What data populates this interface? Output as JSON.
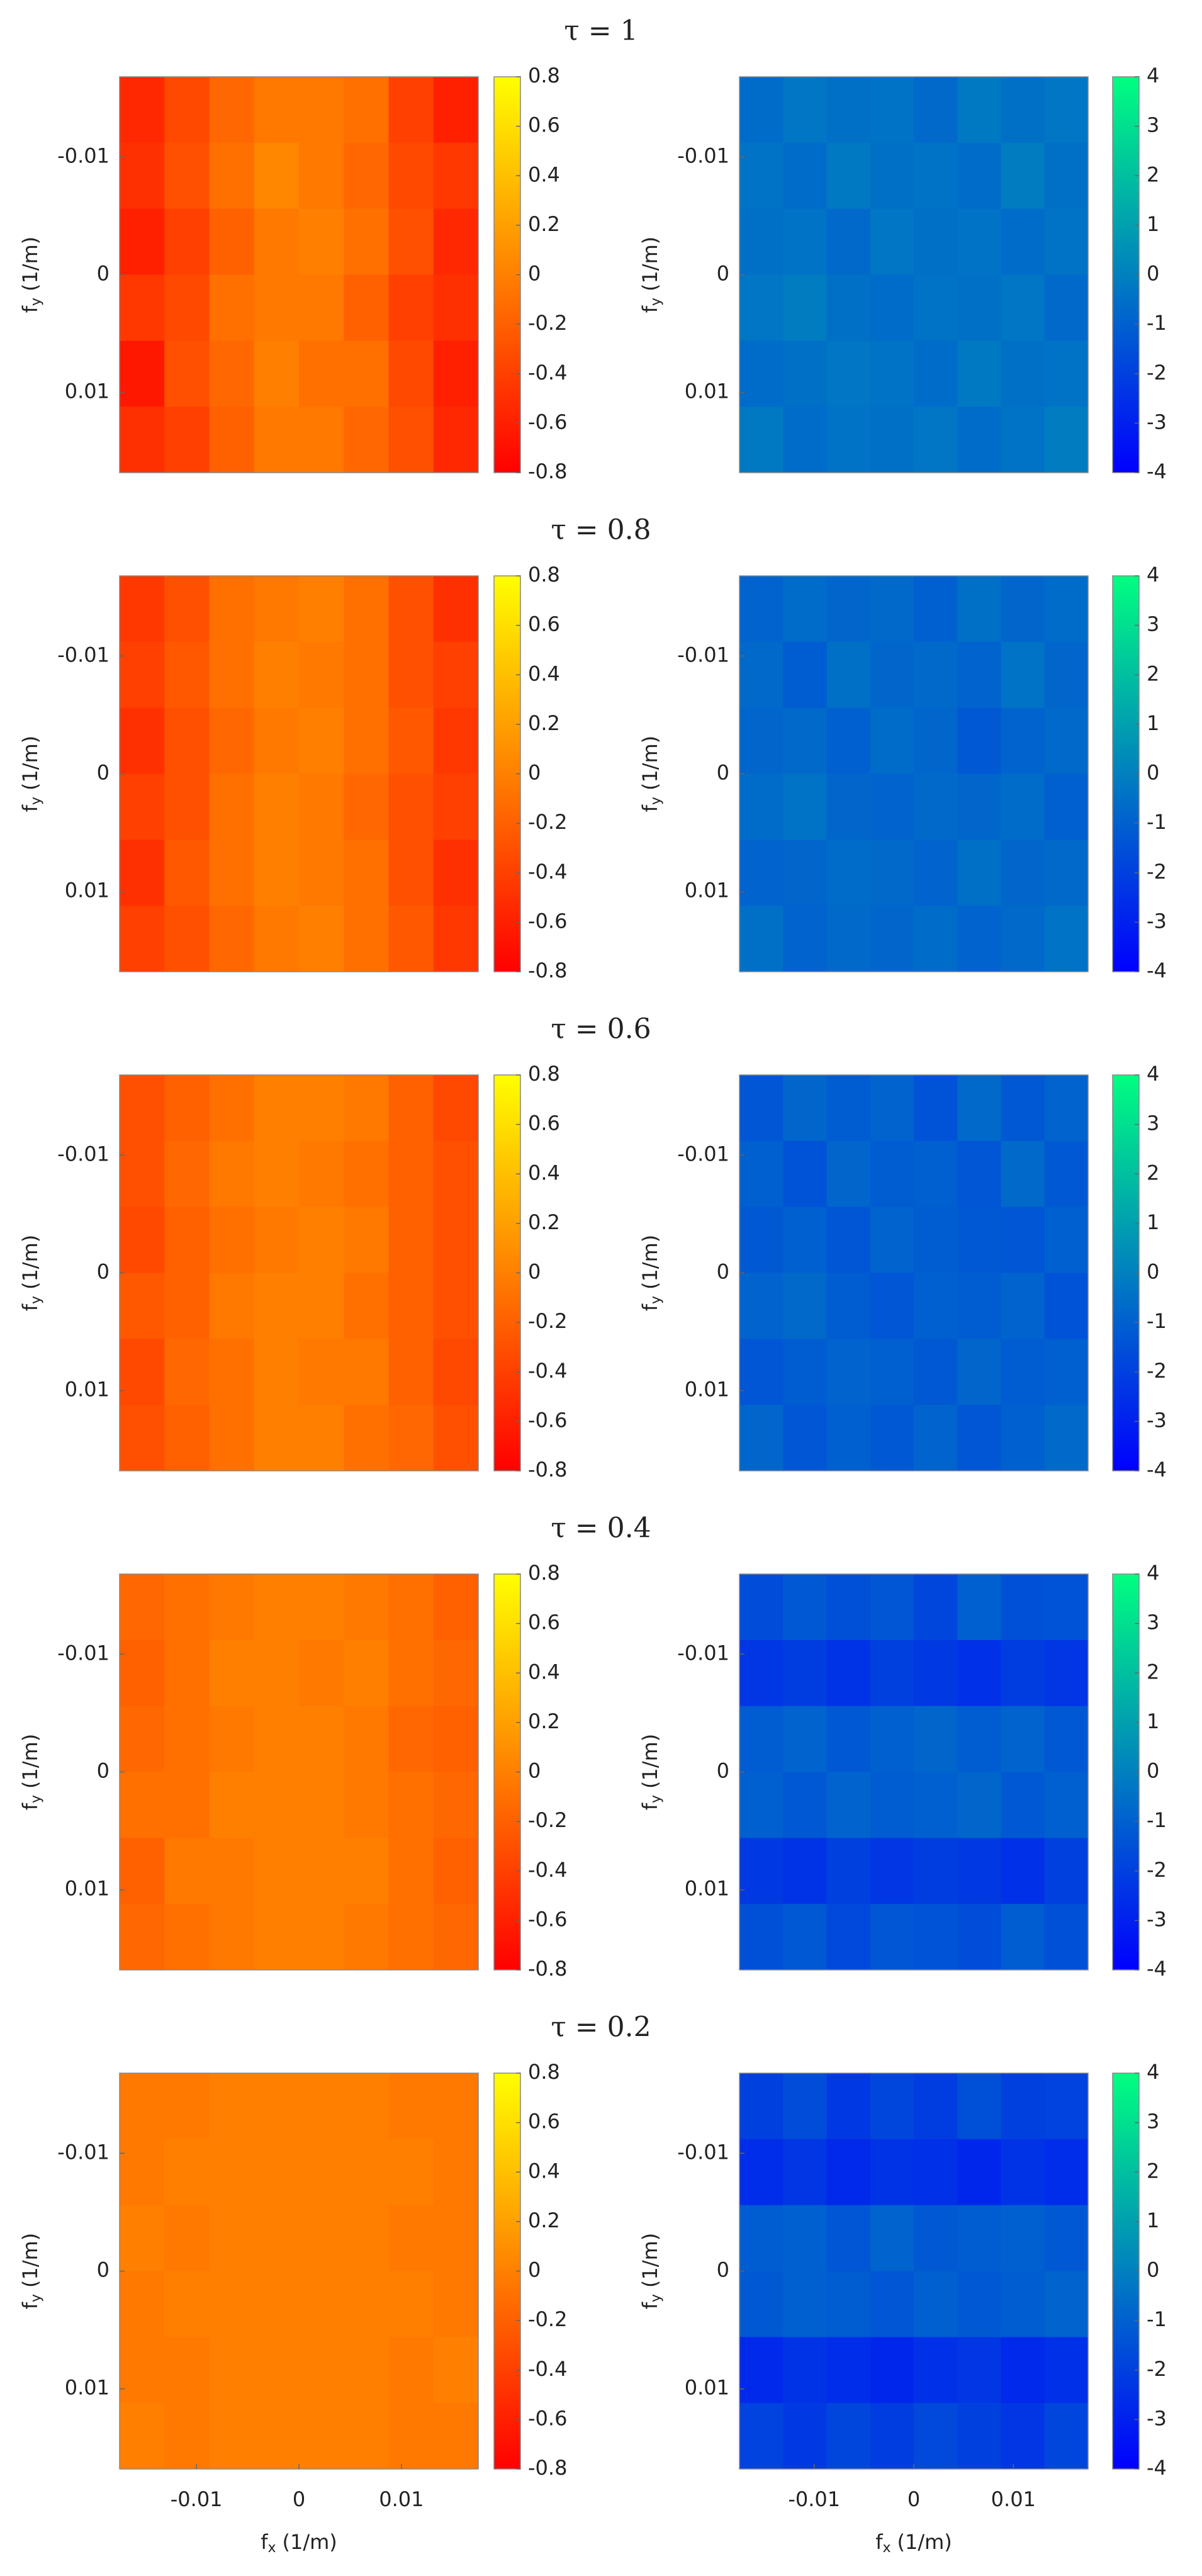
{
  "chart_data": [
    {
      "type": "heatmap",
      "title": "τ = 1",
      "colormap": "autumn",
      "zlim": [
        -0.8,
        0.8
      ],
      "zticks": [
        -0.8,
        -0.6,
        -0.4,
        -0.2,
        0,
        0.2,
        0.4,
        0.6,
        0.8
      ],
      "xlim": [
        -0.0175,
        0.0175
      ],
      "ylim": [
        -0.0168,
        0.0168
      ],
      "y_reversed": true,
      "yticks": [
        -0.01,
        0,
        0.01
      ],
      "y_label": {
        "main": "f",
        "sub": "y",
        "unit": "(1/m)"
      },
      "values": [
        [
          -0.55,
          -0.35,
          -0.15,
          -0.05,
          -0.05,
          -0.1,
          -0.4,
          -0.6
        ],
        [
          -0.5,
          -0.3,
          -0.1,
          0.05,
          -0.05,
          -0.15,
          -0.35,
          -0.45
        ],
        [
          -0.6,
          -0.4,
          -0.2,
          -0.05,
          0,
          -0.1,
          -0.3,
          -0.55
        ],
        [
          -0.45,
          -0.35,
          -0.1,
          -0.05,
          -0.05,
          -0.2,
          -0.4,
          -0.5
        ],
        [
          -0.65,
          -0.3,
          -0.15,
          0,
          -0.1,
          -0.1,
          -0.35,
          -0.6
        ],
        [
          -0.5,
          -0.4,
          -0.2,
          -0.05,
          -0.05,
          -0.15,
          -0.3,
          -0.55
        ]
      ]
    },
    {
      "type": "heatmap",
      "colormap": "winter",
      "zlim": [
        -4,
        4
      ],
      "zticks": [
        -4,
        -3,
        -2,
        -1,
        0,
        1,
        2,
        3,
        4
      ],
      "xlim": [
        -0.0175,
        0.0175
      ],
      "ylim": [
        -0.0168,
        0.0168
      ],
      "y_reversed": true,
      "yticks": [
        -0.01,
        0,
        0.01
      ],
      "y_label": {
        "main": "f",
        "sub": "y",
        "unit": "(1/m)"
      },
      "values": [
        [
          -0.6,
          -0.3,
          -0.5,
          -0.4,
          -0.7,
          -0.2,
          -0.5,
          -0.3
        ],
        [
          -0.4,
          -0.6,
          -0.2,
          -0.5,
          -0.4,
          -0.6,
          -0.1,
          -0.5
        ],
        [
          -0.5,
          -0.4,
          -0.7,
          -0.3,
          -0.5,
          -0.4,
          -0.6,
          -0.4
        ],
        [
          -0.3,
          -0.1,
          -0.5,
          -0.6,
          -0.4,
          -0.5,
          -0.3,
          -0.7
        ],
        [
          -0.6,
          -0.5,
          -0.3,
          -0.4,
          -0.6,
          -0.2,
          -0.5,
          -0.4
        ],
        [
          -0.2,
          -0.6,
          -0.4,
          -0.5,
          -0.3,
          -0.6,
          -0.4,
          -0.1
        ]
      ]
    },
    {
      "type": "heatmap",
      "title": "τ = 0.8",
      "colormap": "autumn",
      "zlim": [
        -0.8,
        0.8
      ],
      "zticks": [
        -0.8,
        -0.6,
        -0.4,
        -0.2,
        0,
        0.2,
        0.4,
        0.6,
        0.8
      ],
      "xlim": [
        -0.0175,
        0.0175
      ],
      "ylim": [
        -0.0168,
        0.0168
      ],
      "y_reversed": true,
      "yticks": [
        -0.01,
        0,
        0.01
      ],
      "y_label": {
        "main": "f",
        "sub": "y",
        "unit": "(1/m)"
      },
      "values": [
        [
          -0.45,
          -0.3,
          -0.1,
          -0.05,
          0,
          -0.1,
          -0.3,
          -0.5
        ],
        [
          -0.4,
          -0.25,
          -0.1,
          0,
          -0.05,
          -0.1,
          -0.3,
          -0.4
        ],
        [
          -0.5,
          -0.3,
          -0.15,
          -0.05,
          0,
          -0.1,
          -0.25,
          -0.45
        ],
        [
          -0.4,
          -0.3,
          -0.1,
          0,
          -0.05,
          -0.15,
          -0.3,
          -0.4
        ],
        [
          -0.5,
          -0.25,
          -0.1,
          0,
          -0.05,
          -0.1,
          -0.3,
          -0.5
        ],
        [
          -0.4,
          -0.3,
          -0.15,
          -0.05,
          0,
          -0.1,
          -0.25,
          -0.45
        ]
      ]
    },
    {
      "type": "heatmap",
      "colormap": "winter",
      "zlim": [
        -4,
        4
      ],
      "zticks": [
        -4,
        -3,
        -2,
        -1,
        0,
        1,
        2,
        3,
        4
      ],
      "xlim": [
        -0.0175,
        0.0175
      ],
      "ylim": [
        -0.0168,
        0.0168
      ],
      "y_reversed": true,
      "yticks": [
        -0.01,
        0,
        0.01
      ],
      "y_label": {
        "main": "f",
        "sub": "y",
        "unit": "(1/m)"
      },
      "values": [
        [
          -0.9,
          -0.6,
          -0.8,
          -0.7,
          -1,
          -0.5,
          -0.8,
          -0.6
        ],
        [
          -0.7,
          -1.1,
          -0.5,
          -0.8,
          -0.7,
          -0.9,
          -0.4,
          -0.8
        ],
        [
          -0.8,
          -0.7,
          -1,
          -0.6,
          -0.8,
          -1.2,
          -0.9,
          -0.7
        ],
        [
          -0.6,
          -0.4,
          -0.8,
          -0.9,
          -0.7,
          -0.8,
          -0.6,
          -1
        ],
        [
          -0.9,
          -0.8,
          -0.6,
          -0.7,
          -0.9,
          -0.5,
          -0.8,
          -0.7
        ],
        [
          -0.5,
          -0.9,
          -0.7,
          -0.8,
          -0.6,
          -0.9,
          -0.7,
          -0.4
        ]
      ]
    },
    {
      "type": "heatmap",
      "title": "τ = 0.6",
      "colormap": "autumn",
      "zlim": [
        -0.8,
        0.8
      ],
      "zticks": [
        -0.8,
        -0.6,
        -0.4,
        -0.2,
        0,
        0.2,
        0.4,
        0.6,
        0.8
      ],
      "xlim": [
        -0.0175,
        0.0175
      ],
      "ylim": [
        -0.0168,
        0.0168
      ],
      "y_reversed": true,
      "yticks": [
        -0.01,
        0,
        0.01
      ],
      "y_label": {
        "main": "f",
        "sub": "y",
        "unit": "(1/m)"
      },
      "values": [
        [
          -0.3,
          -0.2,
          -0.1,
          0,
          0,
          -0.05,
          -0.2,
          -0.35
        ],
        [
          -0.3,
          -0.15,
          -0.05,
          0,
          -0.05,
          -0.1,
          -0.2,
          -0.3
        ],
        [
          -0.35,
          -0.2,
          -0.1,
          -0.05,
          0,
          -0.05,
          -0.2,
          -0.3
        ],
        [
          -0.25,
          -0.2,
          -0.05,
          0,
          0,
          -0.1,
          -0.2,
          -0.3
        ],
        [
          -0.35,
          -0.15,
          -0.1,
          0,
          -0.05,
          -0.05,
          -0.2,
          -0.35
        ],
        [
          -0.3,
          -0.2,
          -0.1,
          0,
          0,
          -0.1,
          -0.15,
          -0.3
        ]
      ]
    },
    {
      "type": "heatmap",
      "colormap": "winter",
      "zlim": [
        -4,
        4
      ],
      "zticks": [
        -4,
        -3,
        -2,
        -1,
        0,
        1,
        2,
        3,
        4
      ],
      "xlim": [
        -0.0175,
        0.0175
      ],
      "ylim": [
        -0.0168,
        0.0168
      ],
      "y_reversed": true,
      "yticks": [
        -0.01,
        0,
        0.01
      ],
      "y_label": {
        "main": "f",
        "sub": "y",
        "unit": "(1/m)"
      },
      "values": [
        [
          -1.3,
          -0.8,
          -1.1,
          -0.9,
          -1.4,
          -0.7,
          -1.2,
          -0.9
        ],
        [
          -1,
          -1.4,
          -0.8,
          -1.1,
          -1,
          -1.3,
          -0.7,
          -1.2
        ],
        [
          -1.2,
          -1,
          -1.3,
          -0.9,
          -1.1,
          -1.2,
          -1.3,
          -1
        ],
        [
          -0.9,
          -0.7,
          -1.1,
          -1.3,
          -1,
          -1.1,
          -0.9,
          -1.4
        ],
        [
          -1.3,
          -1.1,
          -0.9,
          -1,
          -1.2,
          -0.8,
          -1.1,
          -1
        ],
        [
          -0.8,
          -1.3,
          -1,
          -1.2,
          -0.9,
          -1.3,
          -1,
          -0.7
        ]
      ]
    },
    {
      "type": "heatmap",
      "title": "τ = 0.4",
      "colormap": "autumn",
      "zlim": [
        -0.8,
        0.8
      ],
      "zticks": [
        -0.8,
        -0.6,
        -0.4,
        -0.2,
        0,
        0.2,
        0.4,
        0.6,
        0.8
      ],
      "xlim": [
        -0.0175,
        0.0175
      ],
      "ylim": [
        -0.0168,
        0.0168
      ],
      "y_reversed": true,
      "yticks": [
        -0.01,
        0,
        0.01
      ],
      "y_label": {
        "main": "f",
        "sub": "y",
        "unit": "(1/m)"
      },
      "values": [
        [
          -0.15,
          -0.1,
          -0.05,
          0,
          0,
          -0.05,
          -0.1,
          -0.2
        ],
        [
          -0.2,
          -0.1,
          0,
          0,
          -0.05,
          0,
          -0.1,
          -0.15
        ],
        [
          -0.15,
          -0.1,
          -0.05,
          0,
          0,
          -0.05,
          -0.15,
          -0.2
        ],
        [
          -0.1,
          -0.1,
          0,
          0,
          0,
          -0.05,
          -0.1,
          -0.15
        ],
        [
          -0.2,
          -0.05,
          -0.05,
          0,
          0,
          0,
          -0.1,
          -0.2
        ],
        [
          -0.15,
          -0.1,
          -0.05,
          0,
          0,
          -0.05,
          -0.1,
          -0.15
        ]
      ]
    },
    {
      "type": "heatmap",
      "colormap": "winter",
      "zlim": [
        -4,
        4
      ],
      "zticks": [
        -4,
        -3,
        -2,
        -1,
        0,
        1,
        2,
        3,
        4
      ],
      "xlim": [
        -0.0175,
        0.0175
      ],
      "ylim": [
        -0.0168,
        0.0168
      ],
      "y_reversed": true,
      "yticks": [
        -0.01,
        0,
        0.01
      ],
      "y_label": {
        "main": "f",
        "sub": "y",
        "unit": "(1/m)"
      },
      "values": [
        [
          -1.6,
          -1.2,
          -1.5,
          -1.3,
          -1.8,
          -1,
          -1.5,
          -1.4
        ],
        [
          -2.3,
          -2.1,
          -2.4,
          -2,
          -2.2,
          -2.5,
          -2.1,
          -2.3
        ],
        [
          -1.1,
          -0.9,
          -1.2,
          -1,
          -0.8,
          -1.1,
          -0.9,
          -1.2
        ],
        [
          -1,
          -1.2,
          -0.9,
          -1.1,
          -1,
          -0.8,
          -1.2,
          -1
        ],
        [
          -2.2,
          -2.4,
          -2,
          -2.3,
          -2.1,
          -2.2,
          -2.5,
          -2
        ],
        [
          -1.5,
          -1.2,
          -1.7,
          -1.3,
          -1.4,
          -1.6,
          -1.1,
          -1.5
        ]
      ]
    },
    {
      "type": "heatmap",
      "title": "τ = 0.2",
      "colormap": "autumn",
      "zlim": [
        -0.8,
        0.8
      ],
      "zticks": [
        -0.8,
        -0.6,
        -0.4,
        -0.2,
        0,
        0.2,
        0.4,
        0.6,
        0.8
      ],
      "xlim": [
        -0.0175,
        0.0175
      ],
      "ylim": [
        -0.0168,
        0.0168
      ],
      "y_reversed": true,
      "yticks": [
        -0.01,
        0,
        0.01
      ],
      "xticks": [
        -0.01,
        0,
        0.01
      ],
      "y_label": {
        "main": "f",
        "sub": "y",
        "unit": "(1/m)"
      },
      "x_label": {
        "main": "f",
        "sub": "x",
        "unit": "(1/m)"
      },
      "values": [
        [
          -0.05,
          -0.05,
          0,
          0,
          0,
          0,
          -0.05,
          -0.05
        ],
        [
          -0.05,
          0,
          0,
          0,
          0,
          0,
          0,
          -0.05
        ],
        [
          0,
          -0.05,
          0,
          0,
          0,
          0,
          -0.05,
          -0.05
        ],
        [
          -0.05,
          0,
          0,
          0,
          0,
          0,
          0,
          -0.05
        ],
        [
          -0.05,
          -0.05,
          0,
          0,
          0,
          0,
          -0.05,
          0
        ],
        [
          0,
          -0.05,
          0,
          0,
          0,
          0,
          -0.05,
          -0.05
        ]
      ]
    },
    {
      "type": "heatmap",
      "colormap": "winter",
      "zlim": [
        -4,
        4
      ],
      "zticks": [
        -4,
        -3,
        -2,
        -1,
        0,
        1,
        2,
        3,
        4
      ],
      "xlim": [
        -0.0175,
        0.0175
      ],
      "ylim": [
        -0.0168,
        0.0168
      ],
      "y_reversed": true,
      "yticks": [
        -0.01,
        0,
        0.01
      ],
      "xticks": [
        -0.01,
        0,
        0.01
      ],
      "y_label": {
        "main": "f",
        "sub": "y",
        "unit": "(1/m)"
      },
      "x_label": {
        "main": "f",
        "sub": "x",
        "unit": "(1/m)"
      },
      "values": [
        [
          -2,
          -1.6,
          -2.2,
          -1.8,
          -2.1,
          -1.5,
          -2,
          -1.9
        ],
        [
          -2.6,
          -2.3,
          -2.7,
          -2.4,
          -2.5,
          -2.8,
          -2.4,
          -2.6
        ],
        [
          -1.1,
          -1,
          -1.3,
          -0.9,
          -1.2,
          -1.1,
          -1,
          -1.2
        ],
        [
          -1.2,
          -1,
          -1.1,
          -1.3,
          -1,
          -1.2,
          -1.1,
          -0.9
        ],
        [
          -2.7,
          -2.4,
          -2.6,
          -2.8,
          -2.5,
          -2.3,
          -2.7,
          -2.5
        ],
        [
          -1.9,
          -2.2,
          -1.8,
          -2.1,
          -1.7,
          -2,
          -2.3,
          -1.8
        ]
      ]
    }
  ]
}
